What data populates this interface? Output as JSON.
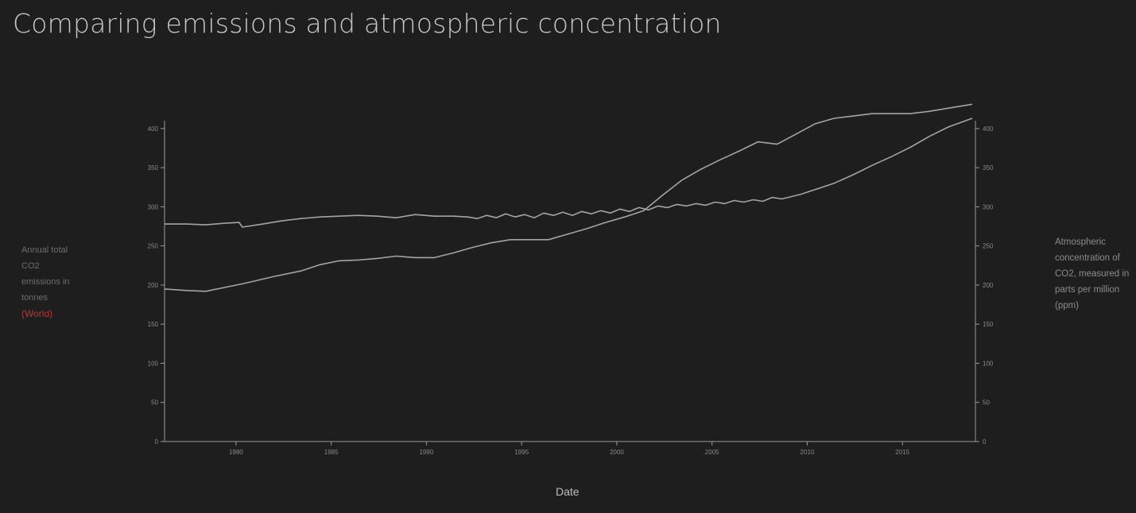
{
  "page": {
    "title": "Comparing emissions and atmospheric concentration"
  },
  "colors": {
    "background": "#1f1e1e",
    "axis": "#9a9a9a",
    "tick_text": "#8a8a8a",
    "line": "#a4a4a4",
    "country_accent": "#b23a3a"
  },
  "labels": {
    "y_left_prefix": "Annual total CO2 emissions in tonnes",
    "y_left_country": "(World)",
    "y_right": "Atmospheric concentration of CO2, measured in parts per million (ppm)",
    "x": "Date"
  },
  "chart_data": {
    "type": "line",
    "title": "Comparing emissions and atmospheric concentration",
    "xlabel": "Date",
    "ylabel_left": "Annual total CO2 emissions in tonnes (World)",
    "ylabel_right": "Atmospheric concentration of CO2, measured in parts per million (ppm)",
    "xlim": [
      "1976-04-01",
      "2018-11-01"
    ],
    "x_ticks": [
      "1980",
      "1985",
      "1990",
      "1995",
      "2000",
      "2005",
      "2010",
      "2015"
    ],
    "y_left_lim": [
      0,
      410
    ],
    "y_left_ticks": [
      "0",
      "50",
      "100",
      "150",
      "200",
      "250",
      "300",
      "350",
      "400"
    ],
    "y_right_lim": [
      0,
      410
    ],
    "y_right_ticks": [
      "0",
      "50",
      "100",
      "150",
      "200",
      "250",
      "300",
      "350",
      "400"
    ],
    "grid": false,
    "series": [
      {
        "axis": "left",
        "points": [
          [
            "1976-04-01",
            195
          ],
          [
            "1977-06-01",
            193
          ],
          [
            "1978-06-01",
            192
          ],
          [
            "1980-06-01",
            202
          ],
          [
            "1982-01-01",
            211
          ],
          [
            "1983-06-01",
            218
          ],
          [
            "1984-06-01",
            226
          ],
          [
            "1985-06-01",
            231
          ],
          [
            "1986-06-01",
            232
          ],
          [
            "1987-06-01",
            234
          ],
          [
            "1988-06-01",
            237
          ],
          [
            "1989-06-01",
            235
          ],
          [
            "1990-06-01",
            235
          ],
          [
            "1991-06-01",
            241
          ],
          [
            "1992-06-01",
            248
          ],
          [
            "1993-06-01",
            254
          ],
          [
            "1994-06-01",
            258
          ],
          [
            "1995-06-01",
            258
          ],
          [
            "1996-06-01",
            258
          ],
          [
            "1997-06-01",
            265
          ],
          [
            "1998-06-01",
            272
          ],
          [
            "1999-06-01",
            280
          ],
          [
            "2000-06-01",
            287
          ],
          [
            "2001-06-01",
            295
          ],
          [
            "2002-06-01",
            315
          ],
          [
            "2003-06-01",
            334
          ],
          [
            "2004-06-01",
            348
          ],
          [
            "2005-06-01",
            360
          ],
          [
            "2006-06-01",
            371
          ],
          [
            "2007-06-01",
            383
          ],
          [
            "2008-06-01",
            380
          ],
          [
            "2009-06-01",
            393
          ],
          [
            "2010-06-01",
            406
          ],
          [
            "2011-06-01",
            413
          ],
          [
            "2012-06-01",
            416
          ],
          [
            "2013-06-01",
            419
          ],
          [
            "2014-06-01",
            419
          ],
          [
            "2015-06-01",
            419
          ],
          [
            "2016-06-01",
            422
          ],
          [
            "2017-06-01",
            426
          ],
          [
            "2018-09-01",
            431
          ]
        ]
      },
      {
        "axis": "right",
        "points": [
          [
            "1976-04-01",
            278
          ],
          [
            "1977-06-01",
            278
          ],
          [
            "1978-06-01",
            277
          ],
          [
            "1979-06-01",
            279
          ],
          [
            "1980-03-01",
            280
          ],
          [
            "1980-05-01",
            274
          ],
          [
            "1981-06-01",
            278
          ],
          [
            "1982-06-01",
            282
          ],
          [
            "1983-06-01",
            285
          ],
          [
            "1984-06-01",
            287
          ],
          [
            "1985-06-01",
            288
          ],
          [
            "1986-06-01",
            289
          ],
          [
            "1987-06-01",
            288
          ],
          [
            "1988-06-01",
            286
          ],
          [
            "1989-06-01",
            290
          ],
          [
            "1990-06-01",
            288
          ],
          [
            "1991-06-01",
            288
          ],
          [
            "1992-03-01",
            287
          ],
          [
            "1992-09-01",
            285
          ],
          [
            "1993-03-01",
            289
          ],
          [
            "1993-09-01",
            286
          ],
          [
            "1994-03-01",
            291
          ],
          [
            "1994-09-01",
            287
          ],
          [
            "1995-03-01",
            290
          ],
          [
            "1995-09-01",
            286
          ],
          [
            "1996-03-01",
            292
          ],
          [
            "1996-09-01",
            289
          ],
          [
            "1997-03-01",
            293
          ],
          [
            "1997-09-01",
            289
          ],
          [
            "1998-03-01",
            294
          ],
          [
            "1998-09-01",
            291
          ],
          [
            "1999-03-01",
            295
          ],
          [
            "1999-09-01",
            292
          ],
          [
            "2000-03-01",
            297
          ],
          [
            "2000-09-01",
            294
          ],
          [
            "2001-03-01",
            299
          ],
          [
            "2001-09-01",
            296
          ],
          [
            "2002-03-01",
            301
          ],
          [
            "2002-09-01",
            299
          ],
          [
            "2003-03-01",
            303
          ],
          [
            "2003-09-01",
            301
          ],
          [
            "2004-03-01",
            304
          ],
          [
            "2004-09-01",
            302
          ],
          [
            "2005-03-01",
            306
          ],
          [
            "2005-09-01",
            304
          ],
          [
            "2006-03-01",
            308
          ],
          [
            "2006-09-01",
            306
          ],
          [
            "2007-03-01",
            309
          ],
          [
            "2007-09-01",
            307
          ],
          [
            "2008-03-01",
            312
          ],
          [
            "2008-09-01",
            310
          ],
          [
            "2009-03-01",
            313
          ],
          [
            "2009-09-01",
            316
          ],
          [
            "2010-06-01",
            322
          ],
          [
            "2011-06-01",
            330
          ],
          [
            "2012-06-01",
            341
          ],
          [
            "2013-06-01",
            353
          ],
          [
            "2014-06-01",
            364
          ],
          [
            "2015-06-01",
            376
          ],
          [
            "2016-06-01",
            390
          ],
          [
            "2017-06-01",
            402
          ],
          [
            "2018-09-01",
            413
          ]
        ]
      }
    ]
  }
}
